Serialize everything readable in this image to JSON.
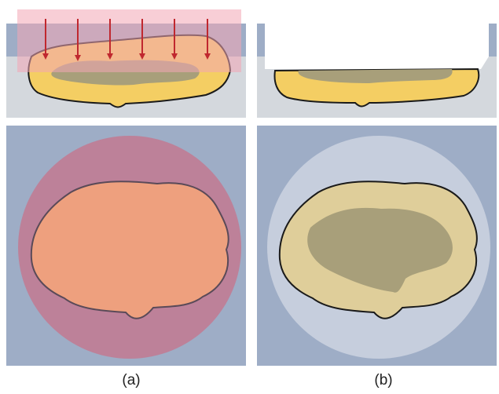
{
  "captions": {
    "a": "(a)",
    "b": "(b)"
  },
  "colors": {
    "background_blue": "#9eadc6",
    "substrate_grey": "#d4d8dd",
    "material_yellow": "#f4ce63",
    "inclusion_olive": "#a89f7a",
    "outline": "#1a1a1a",
    "pressure_pink": "#f2a6b4",
    "arrow_red": "#c0282f",
    "pad_red": "#c7738a",
    "pad_white": "#c6cedd",
    "heated_orange": "#eea07e"
  },
  "panels": [
    {
      "id": "a-top",
      "view": "cross-section",
      "arrows": 6
    },
    {
      "id": "b-top",
      "view": "cross-section"
    },
    {
      "id": "a-bottom",
      "view": "top"
    },
    {
      "id": "b-bottom",
      "view": "top"
    }
  ]
}
